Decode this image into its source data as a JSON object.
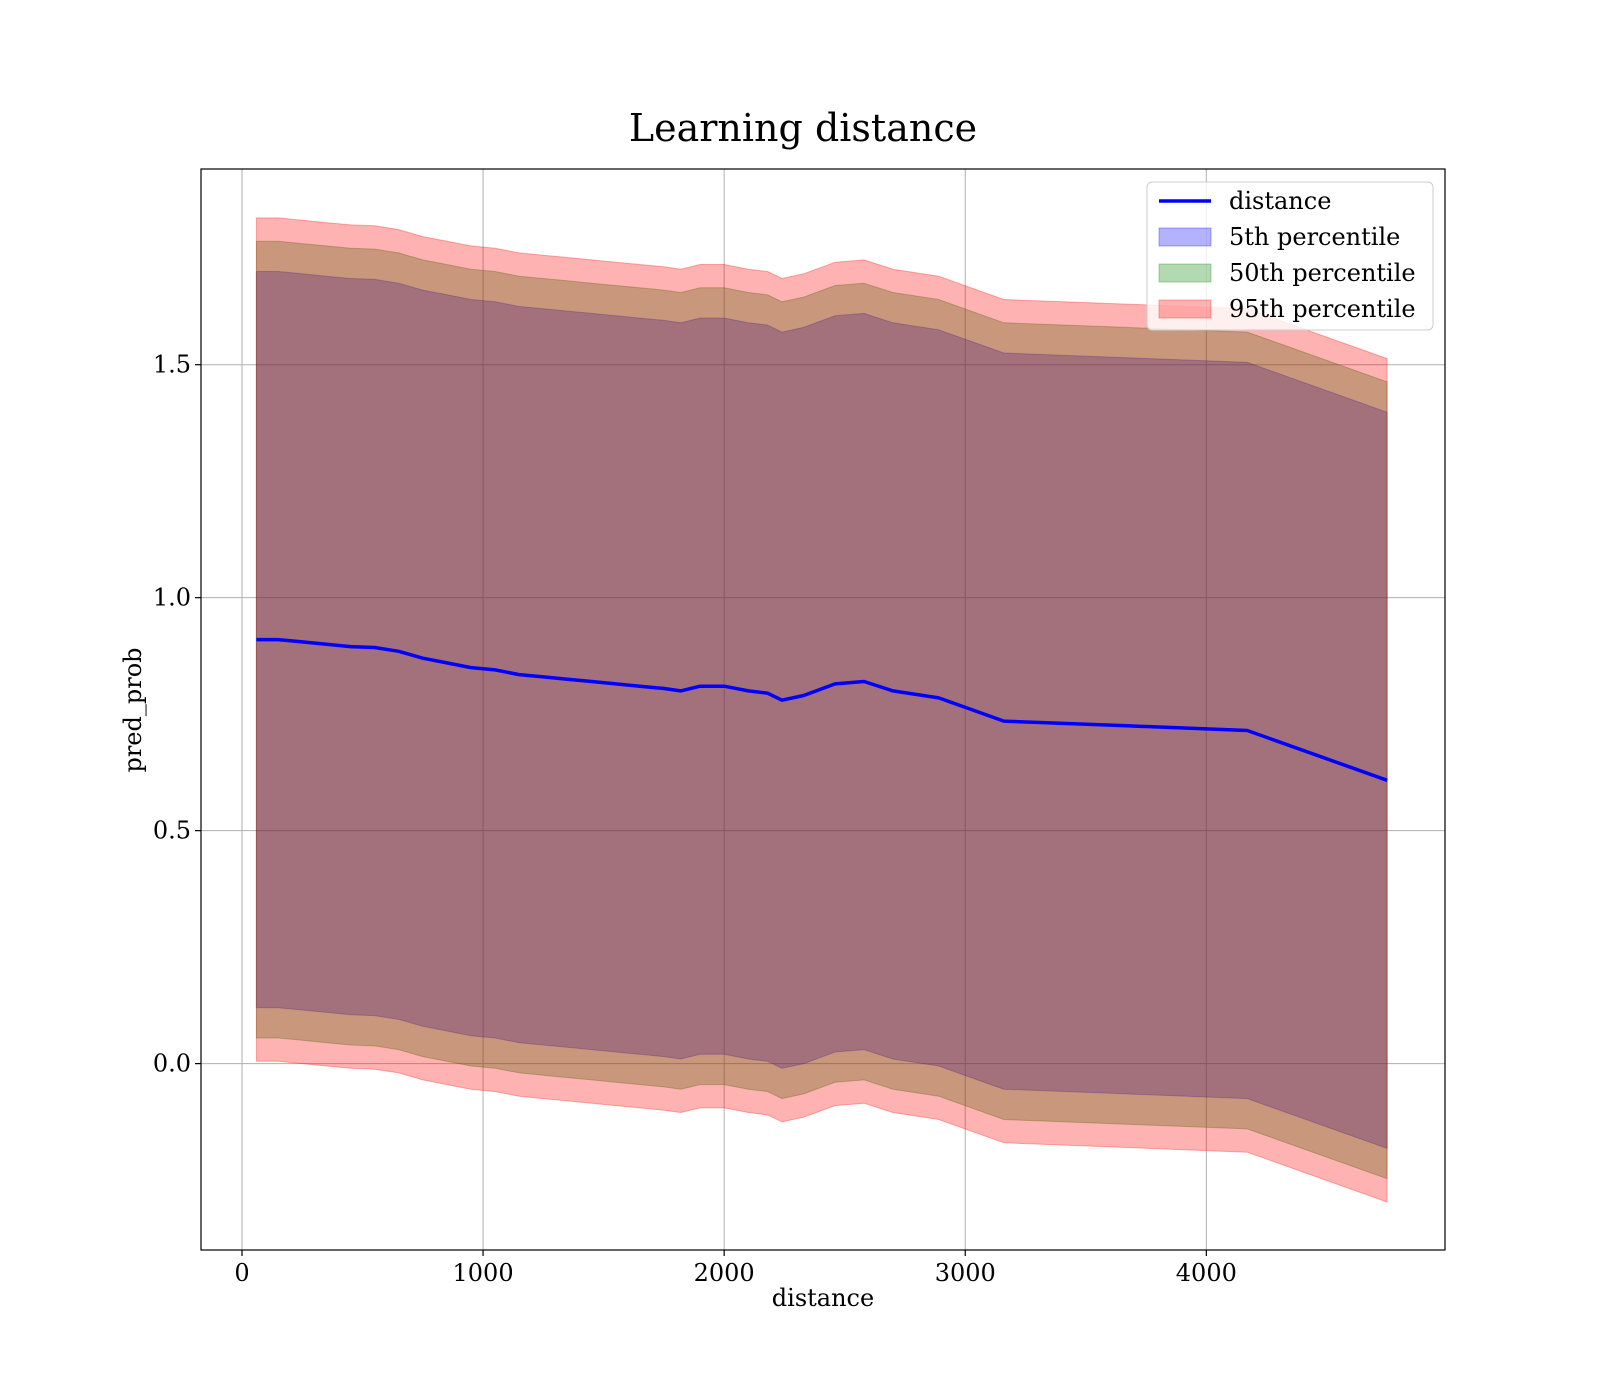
{
  "chart_data": {
    "type": "line",
    "title": "Learning distance",
    "xlabel": "distance",
    "ylabel": "pred_prob",
    "xlim": [
      -170,
      4990
    ],
    "ylim": [
      -0.4,
      1.92
    ],
    "xticks": [
      0,
      1000,
      2000,
      3000,
      4000
    ],
    "yticks": [
      0.0,
      0.5,
      1.0,
      1.5
    ],
    "xtick_labels": [
      "0",
      "1000",
      "2000",
      "3000",
      "4000"
    ],
    "ytick_labels": [
      "0.0",
      "0.5",
      "1.0",
      "1.5"
    ],
    "grid": true,
    "legend_position": "top-right",
    "colors": {
      "line": "#0000ff",
      "band_5th": "#0000ff",
      "band_50th": "#008000",
      "band_95th": "#ff0000",
      "grid": "#b0b0b0"
    },
    "x": [
      60,
      150,
      250,
      350,
      450,
      550,
      650,
      750,
      850,
      950,
      1050,
      1150,
      1250,
      1350,
      1450,
      1550,
      1650,
      1750,
      1820,
      1900,
      2000,
      2100,
      2180,
      2240,
      2330,
      2460,
      2580,
      2700,
      2890,
      3160,
      3670,
      4170,
      4750
    ],
    "series": [
      {
        "name": "distance",
        "role": "line",
        "values": [
          0.91,
          0.91,
          0.905,
          0.9,
          0.895,
          0.893,
          0.885,
          0.87,
          0.86,
          0.85,
          0.845,
          0.835,
          0.83,
          0.825,
          0.82,
          0.815,
          0.81,
          0.805,
          0.8,
          0.81,
          0.81,
          0.8,
          0.795,
          0.78,
          0.79,
          0.815,
          0.82,
          0.8,
          0.785,
          0.735,
          0.725,
          0.715,
          0.608
        ]
      },
      {
        "name": "5th percentile",
        "role": "band",
        "upper": [
          1.7,
          1.7,
          1.695,
          1.69,
          1.685,
          1.683,
          1.675,
          1.66,
          1.65,
          1.64,
          1.635,
          1.625,
          1.62,
          1.615,
          1.61,
          1.605,
          1.6,
          1.595,
          1.59,
          1.6,
          1.6,
          1.59,
          1.585,
          1.57,
          1.58,
          1.605,
          1.61,
          1.59,
          1.575,
          1.525,
          1.515,
          1.505,
          1.398
        ],
        "lower": [
          0.12,
          0.12,
          0.115,
          0.11,
          0.105,
          0.103,
          0.095,
          0.08,
          0.07,
          0.06,
          0.055,
          0.045,
          0.04,
          0.035,
          0.03,
          0.025,
          0.02,
          0.015,
          0.01,
          0.02,
          0.02,
          0.01,
          0.005,
          -0.01,
          0.0,
          0.025,
          0.03,
          0.01,
          -0.005,
          -0.055,
          -0.065,
          -0.075,
          -0.182
        ]
      },
      {
        "name": "50th percentile",
        "role": "band",
        "upper": [
          1.765,
          1.765,
          1.76,
          1.755,
          1.75,
          1.748,
          1.74,
          1.725,
          1.715,
          1.705,
          1.7,
          1.69,
          1.685,
          1.68,
          1.675,
          1.67,
          1.665,
          1.66,
          1.655,
          1.665,
          1.665,
          1.655,
          1.65,
          1.635,
          1.645,
          1.67,
          1.675,
          1.655,
          1.64,
          1.59,
          1.58,
          1.57,
          1.463
        ],
        "lower": [
          0.055,
          0.055,
          0.05,
          0.045,
          0.04,
          0.038,
          0.03,
          0.015,
          0.005,
          -0.005,
          -0.01,
          -0.02,
          -0.025,
          -0.03,
          -0.035,
          -0.04,
          -0.045,
          -0.05,
          -0.055,
          -0.045,
          -0.045,
          -0.055,
          -0.06,
          -0.075,
          -0.065,
          -0.04,
          -0.035,
          -0.055,
          -0.07,
          -0.12,
          -0.13,
          -0.14,
          -0.247
        ]
      },
      {
        "name": "95th percentile",
        "role": "band",
        "upper": [
          1.815,
          1.815,
          1.81,
          1.805,
          1.8,
          1.798,
          1.79,
          1.775,
          1.765,
          1.755,
          1.75,
          1.74,
          1.735,
          1.73,
          1.725,
          1.72,
          1.715,
          1.71,
          1.705,
          1.715,
          1.715,
          1.705,
          1.7,
          1.685,
          1.695,
          1.72,
          1.725,
          1.705,
          1.69,
          1.64,
          1.63,
          1.62,
          1.513
        ],
        "lower": [
          0.005,
          0.005,
          0.0,
          -0.005,
          -0.01,
          -0.012,
          -0.02,
          -0.035,
          -0.045,
          -0.055,
          -0.06,
          -0.07,
          -0.075,
          -0.08,
          -0.085,
          -0.09,
          -0.095,
          -0.1,
          -0.105,
          -0.095,
          -0.095,
          -0.105,
          -0.11,
          -0.125,
          -0.115,
          -0.09,
          -0.085,
          -0.105,
          -0.12,
          -0.17,
          -0.18,
          -0.19,
          -0.297
        ]
      }
    ]
  }
}
